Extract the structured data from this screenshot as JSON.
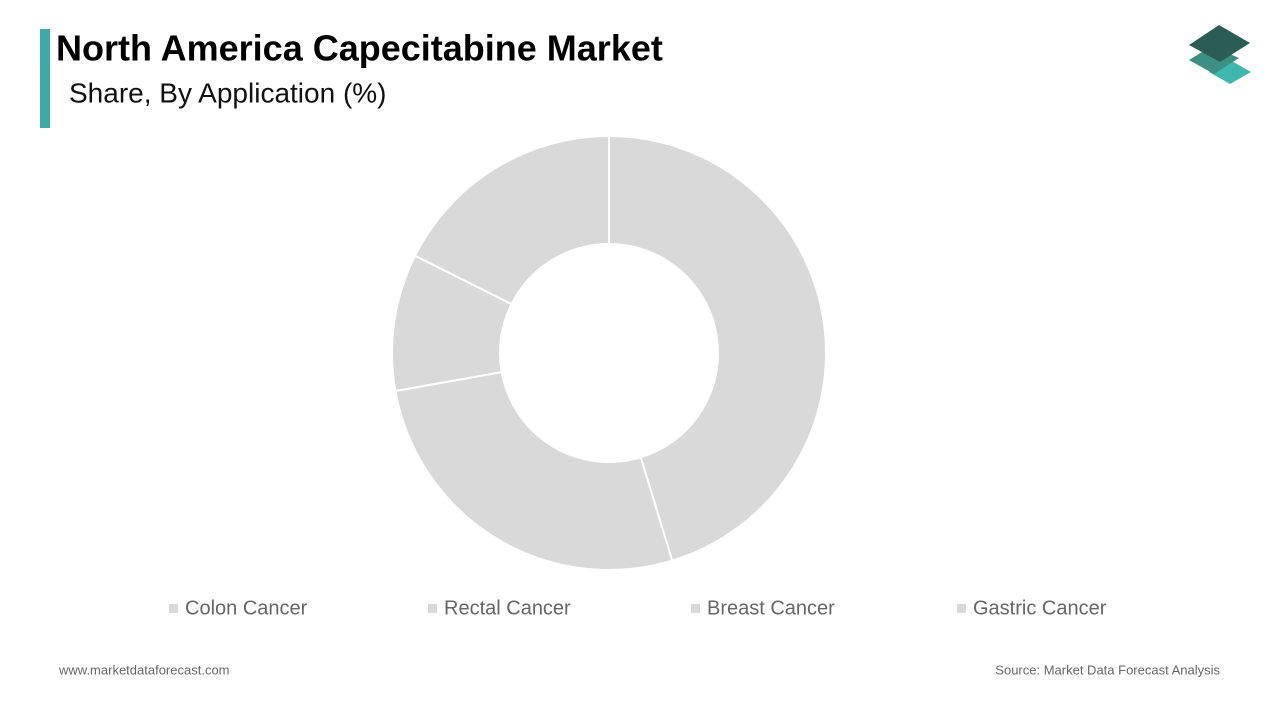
{
  "chart_data": {
    "type": "pie",
    "title": "North America Capecitabine Market",
    "subtitle": "Share, By Application (%)",
    "categories": [
      "Colon Cancer",
      "Rectal Cancer",
      "Breast Cancer",
      "Gastric Cancer"
    ],
    "values": [
      45.3,
      26.9,
      10.2,
      17.6
    ],
    "colors": [
      "#d9d9d9",
      "#d9d9d9",
      "#d9d9d9",
      "#d9d9d9"
    ]
  },
  "footer": {
    "website": "www.marketdataforecast.com",
    "source": "Source: Market Data Forecast Analysis"
  }
}
